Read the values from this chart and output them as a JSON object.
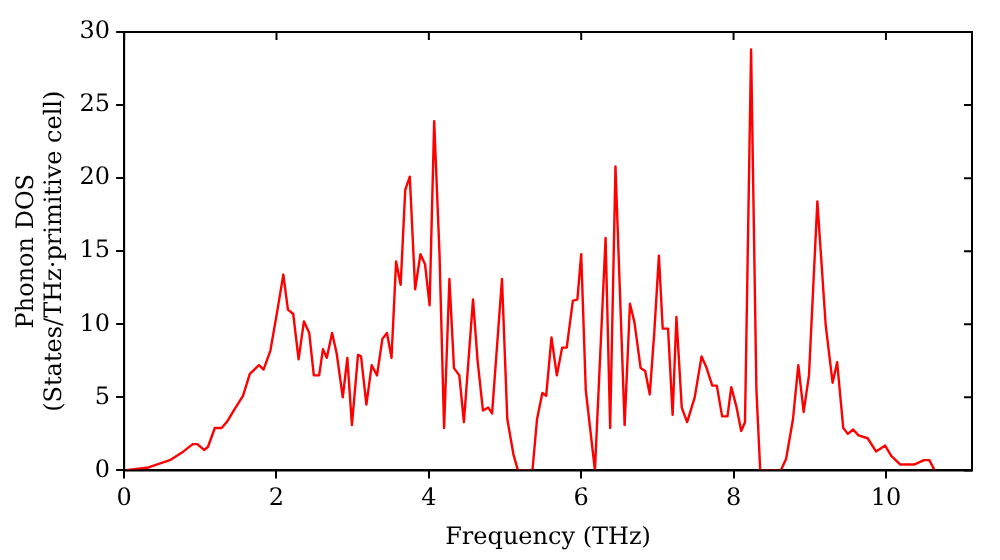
{
  "chart_data": {
    "type": "line",
    "xlabel": "Frequency (THz)",
    "ylabel": "Phonon DOS\n(States/THz·primitive cell)",
    "xlim": [
      0,
      11.13
    ],
    "ylim": [
      0,
      30
    ],
    "xticks": [
      0,
      2,
      4,
      6,
      8,
      10
    ],
    "yticks": [
      0,
      5,
      10,
      15,
      20,
      25,
      30
    ],
    "grid": false,
    "legend": false,
    "marker": "none",
    "line_style": "solid",
    "series": [
      {
        "color": "#ff0000",
        "x": [
          0,
          0.32,
          0.6,
          0.78,
          0.9,
          0.96,
          1.05,
          1.1,
          1.19,
          1.28,
          1.36,
          1.44,
          1.56,
          1.65,
          1.77,
          1.83,
          1.92,
          2.01,
          2.09,
          2.15,
          2.22,
          2.29,
          2.36,
          2.43,
          2.49,
          2.56,
          2.61,
          2.66,
          2.73,
          2.79,
          2.87,
          2.93,
          2.99,
          3.07,
          3.11,
          3.18,
          3.25,
          3.32,
          3.39,
          3.45,
          3.51,
          3.57,
          3.63,
          3.69,
          3.75,
          3.82,
          3.89,
          3.95,
          4.01,
          4.07,
          4.14,
          4.2,
          4.27,
          4.33,
          4.4,
          4.46,
          4.58,
          4.64,
          4.71,
          4.78,
          4.83,
          4.96,
          5.03,
          5.11,
          5.17,
          5.36,
          5.42,
          5.49,
          5.54,
          5.61,
          5.68,
          5.75,
          5.81,
          5.89,
          5.95,
          6.0,
          6.06,
          6.18,
          6.32,
          6.38,
          6.45,
          6.57,
          6.64,
          6.7,
          6.78,
          6.84,
          6.9,
          6.96,
          7.02,
          7.07,
          7.14,
          7.2,
          7.25,
          7.32,
          7.39,
          7.49,
          7.58,
          7.64,
          7.72,
          7.78,
          7.85,
          7.92,
          7.97,
          8.04,
          8.1,
          8.15,
          8.23,
          8.3,
          8.35,
          8.62,
          8.69,
          8.78,
          8.85,
          8.92,
          8.99,
          9.1,
          9.21,
          9.3,
          9.36,
          9.44,
          9.5,
          9.57,
          9.64,
          9.76,
          9.87,
          9.99,
          10.07,
          10.19,
          10.37,
          10.5,
          10.57,
          10.64
        ],
        "values": [
          0,
          0.2,
          0.7,
          1.3,
          1.8,
          1.8,
          1.4,
          1.6,
          2.9,
          2.9,
          3.4,
          4.1,
          5.1,
          6.6,
          7.2,
          6.9,
          8.2,
          10.9,
          13.4,
          11.0,
          10.7,
          7.6,
          10.2,
          9.4,
          6.5,
          6.5,
          8.3,
          7.7,
          9.4,
          8.0,
          5.0,
          7.7,
          3.1,
          7.9,
          7.8,
          4.5,
          7.2,
          6.5,
          9.0,
          9.4,
          7.7,
          14.3,
          12.7,
          19.2,
          20.1,
          12.4,
          14.8,
          14.1,
          11.3,
          23.9,
          14.8,
          2.9,
          13.1,
          7.0,
          6.5,
          3.3,
          11.7,
          7.5,
          4.1,
          4.3,
          3.9,
          13.1,
          3.5,
          1.1,
          0,
          0,
          3.5,
          5.3,
          5.1,
          9.1,
          6.5,
          8.4,
          8.4,
          11.6,
          11.7,
          14.8,
          5.5,
          0,
          15.9,
          2.9,
          20.8,
          3.1,
          11.4,
          10.1,
          7.0,
          6.8,
          5.2,
          9.5,
          14.7,
          9.7,
          9.7,
          3.8,
          10.5,
          4.3,
          3.3,
          5.0,
          7.8,
          7.1,
          5.8,
          5.8,
          3.7,
          3.7,
          5.7,
          4.3,
          2.7,
          3.3,
          28.8,
          5.5,
          0,
          0,
          0.8,
          3.5,
          7.2,
          4.0,
          6.5,
          18.4,
          9.9,
          6.0,
          7.4,
          2.9,
          2.5,
          2.8,
          2.4,
          2.2,
          1.3,
          1.7,
          1.0,
          0.4,
          0.4,
          0.7,
          0.7,
          0
        ]
      }
    ]
  }
}
